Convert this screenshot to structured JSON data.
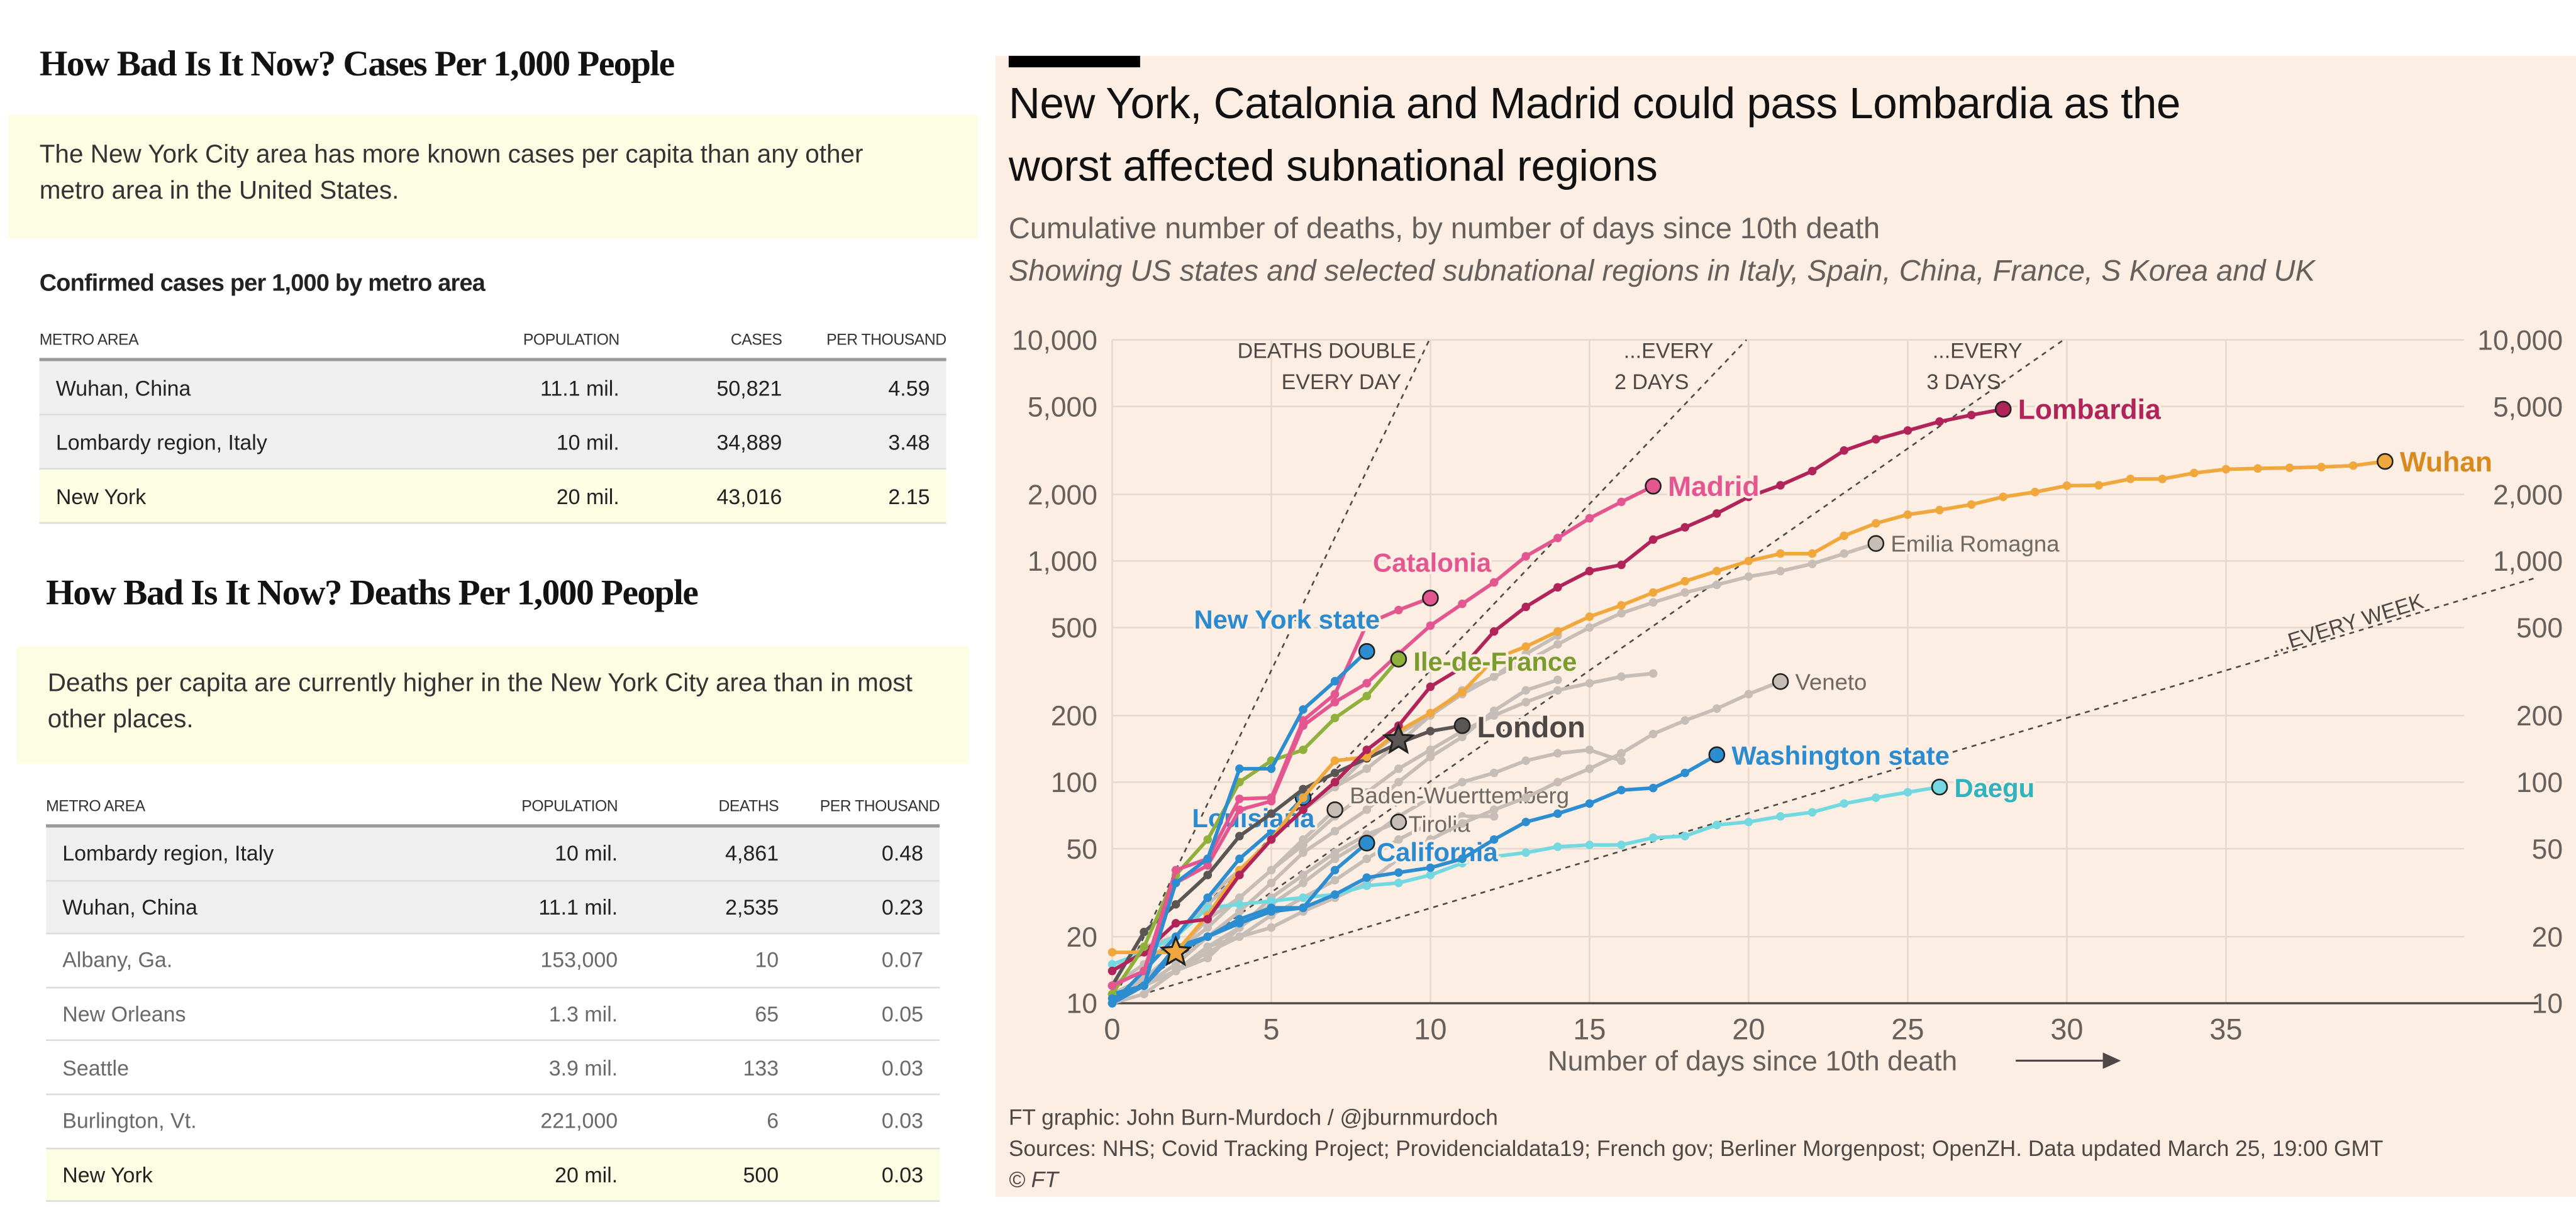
{
  "cases_section": {
    "title": "How Bad Is It Now? Cases Per 1,000 People",
    "note": "The New York City area has more known cases per capita than any other metro area in the United States.",
    "subhead": "Confirmed cases per 1,000 by metro area",
    "columns": [
      "METRO AREA",
      "POPULATION",
      "CASES",
      "PER THOUSAND"
    ],
    "rows": [
      {
        "area": "Wuhan, China",
        "population": "11.1 mil.",
        "count": "50,821",
        "per_thousand": "4.59",
        "highlight": "gray"
      },
      {
        "area": "Lombardy region, Italy",
        "population": "10 mil.",
        "count": "34,889",
        "per_thousand": "3.48",
        "highlight": "gray"
      },
      {
        "area": "New York",
        "population": "20 mil.",
        "count": "43,016",
        "per_thousand": "2.15",
        "highlight": "yellow"
      }
    ]
  },
  "deaths_section": {
    "title": "How Bad Is It Now? Deaths Per 1,000 People",
    "note": "Deaths per capita are currently higher in the New York City area than in most other places.",
    "columns": [
      "METRO AREA",
      "POPULATION",
      "DEATHS",
      "PER THOUSAND"
    ],
    "rows": [
      {
        "area": "Lombardy region, Italy",
        "population": "10 mil.",
        "count": "4,861",
        "per_thousand": "0.48",
        "highlight": "gray"
      },
      {
        "area": "Wuhan, China",
        "population": "11.1 mil.",
        "count": "2,535",
        "per_thousand": "0.23",
        "highlight": "gray"
      },
      {
        "area": "Albany, Ga.",
        "population": "153,000",
        "count": "10",
        "per_thousand": "0.07",
        "highlight": "none"
      },
      {
        "area": "New Orleans",
        "population": "1.3 mil.",
        "count": "65",
        "per_thousand": "0.05",
        "highlight": "none"
      },
      {
        "area": "Seattle",
        "population": "3.9 mil.",
        "count": "133",
        "per_thousand": "0.03",
        "highlight": "none"
      },
      {
        "area": "Burlington, Vt.",
        "population": "221,000",
        "count": "6",
        "per_thousand": "0.03",
        "highlight": "none"
      },
      {
        "area": "New York",
        "population": "20 mil.",
        "count": "500",
        "per_thousand": "0.03",
        "highlight": "yellow"
      }
    ]
  },
  "ft_chart": {
    "title_line1": "New York, Catalonia and Madrid could pass Lombardia as the",
    "title_line2": "worst affected subnational regions",
    "subtitle": "Cumulative number of deaths, by number of days since 10th death",
    "subtitle_italic": "Showing US states and selected subnational regions in Italy, Spain, China, France, S Korea and UK",
    "credit": "FT graphic: John Burn-Murdoch / @jburnmurdoch",
    "sources": "Sources: NHS; Covid Tracking Project; Providencialdata19; French gov; Berliner Morgenpost; OpenZH. Data updated March 25, 19:00 GMT",
    "copyright": "© FT",
    "background": "#fdeee4"
  },
  "chart_data": {
    "type": "line",
    "xlabel": "Number of days since 10th death",
    "x_axis_arrow": true,
    "xlim": [
      0,
      44
    ],
    "ylim": [
      10,
      10000
    ],
    "y_scale": "log",
    "x_ticks": [
      0,
      5,
      10,
      15,
      20,
      25,
      30,
      35
    ],
    "y_ticks": [
      10,
      20,
      50,
      100,
      200,
      500,
      1000,
      2000,
      5000,
      10000
    ],
    "y_tick_labels": [
      "10",
      "20",
      "50",
      "100",
      "200",
      "500",
      "1,000",
      "2,000",
      "5,000",
      "10,000"
    ],
    "y_axis_sides": "both",
    "grid": true,
    "reference_lines": [
      {
        "doubling_days": 1,
        "label_lines": [
          "DEATHS DOUBLE",
          "EVERY DAY"
        ]
      },
      {
        "doubling_days": 2,
        "label_lines": [
          "...EVERY",
          "2 DAYS"
        ]
      },
      {
        "doubling_days": 3,
        "label_lines": [
          "...EVERY",
          "3 DAYS"
        ]
      },
      {
        "doubling_days": 7,
        "label_lines": [
          "...EVERY WEEK"
        ]
      }
    ],
    "series": [
      {
        "name": "",
        "color": "#c6bdb6",
        "values": [
          12,
          15,
          20,
          28,
          38,
          55,
          75,
          95,
          130,
          165,
          200,
          260,
          300,
          380,
          460
        ]
      },
      {
        "name": "",
        "color": "#c6bdb6",
        "values": [
          11,
          13,
          17,
          22,
          30,
          40,
          52,
          70,
          90,
          115,
          140,
          170,
          200,
          230,
          260,
          280,
          300,
          310
        ]
      },
      {
        "name": "",
        "color": "#c6bdb6",
        "values": [
          10,
          12,
          15,
          20,
          26,
          35,
          48,
          60,
          75,
          100,
          130,
          160,
          210,
          260,
          290
        ]
      },
      {
        "name": "",
        "color": "#c6bdb6",
        "values": [
          10,
          11,
          14,
          18,
          22,
          28,
          35,
          45,
          55,
          70,
          85,
          100,
          110,
          125,
          135,
          140,
          125
        ]
      },
      {
        "name": "",
        "color": "#c6bdb6",
        "values": [
          10,
          12,
          14,
          17,
          20,
          25,
          30,
          36,
          45,
          55,
          65,
          70,
          70
        ]
      },
      {
        "name": "Baden-Wuerttemberg",
        "color": "#c6bdb6",
        "label_color": "#6f6964",
        "values": [
          10,
          13,
          17,
          24,
          30,
          40,
          55,
          75
        ]
      },
      {
        "name": "Tirolia",
        "color": "#c6bdb6",
        "label_color": "#6f6964",
        "values": [
          10,
          12,
          14,
          16,
          22,
          30,
          38,
          48,
          58,
          66
        ]
      },
      {
        "name": "Veneto",
        "color": "#c6bdb6",
        "label_color": "#6f6964",
        "values": [
          10,
          12,
          14,
          18,
          20,
          22,
          26,
          30,
          35,
          45,
          55,
          65,
          75,
          85,
          100,
          115,
          135,
          165,
          190,
          215,
          250,
          285
        ]
      },
      {
        "name": "Emilia Romagna",
        "color": "#c6bdb6",
        "label_color": "#6f6964",
        "values": [
          14,
          18,
          20,
          30,
          40,
          55,
          75,
          95,
          115,
          150,
          200,
          250,
          300,
          350,
          420,
          500,
          580,
          650,
          720,
          780,
          850,
          900,
          970,
          1080,
          1200
        ]
      },
      {
        "name": "Daegu",
        "color": "#74d8e0",
        "label_color": "#2fb3bd",
        "values": [
          15,
          17,
          20,
          27,
          28,
          29,
          30,
          31,
          34,
          35,
          38,
          43,
          46,
          48,
          51,
          52,
          52,
          56,
          57,
          64,
          66,
          70,
          73,
          80,
          85,
          90,
          95
        ]
      },
      {
        "name": "California",
        "color": "#2c8ed1",
        "label_color": "#2a8bd0",
        "values": [
          11,
          12,
          17,
          20,
          24,
          27,
          27,
          40,
          53
        ]
      },
      {
        "name": "Louisiana",
        "color": "#2c8ed1",
        "label_color": "#2a8bd0",
        "values": [
          10,
          14,
          20,
          30,
          45,
          60,
          85
        ]
      },
      {
        "name": "Washington state",
        "color": "#2c8ed1",
        "label_color": "#2a8bd0",
        "values": [
          10,
          12,
          18,
          20,
          23,
          26,
          27,
          31,
          37,
          39,
          41,
          45,
          55,
          66,
          72,
          80,
          92,
          94,
          110,
          133
        ]
      },
      {
        "name": "London",
        "color": "#5b5654",
        "label_color": "#4d4845",
        "values": [
          12,
          21,
          28,
          38,
          57,
          72,
          93,
          110,
          128,
          150,
          170,
          180
        ]
      },
      {
        "name": "Wuhan",
        "color": "#f0a83c",
        "label_color": "#d98a1e",
        "values": [
          17,
          17,
          17,
          25,
          40,
          55,
          85,
          125,
          130,
          170,
          205,
          255,
          360,
          410,
          480,
          560,
          630,
          720,
          810,
          900,
          1000,
          1080,
          1080,
          1300,
          1480,
          1620,
          1700,
          1800,
          1950,
          2050,
          2190,
          2200,
          2350,
          2350,
          2500,
          2600,
          2620,
          2640,
          2660,
          2700,
          2820
        ]
      },
      {
        "name": "Lombardia",
        "color": "#b0245a",
        "label_color": "#b0245a",
        "values": [
          14,
          17,
          23,
          24,
          38,
          55,
          75,
          100,
          140,
          180,
          270,
          330,
          480,
          620,
          760,
          900,
          960,
          1250,
          1420,
          1640,
          1950,
          2200,
          2550,
          3160,
          3550,
          3890,
          4270,
          4570,
          4861
        ]
      },
      {
        "name": "Madrid",
        "color": "#e4568f",
        "label_color": "#e4568f",
        "values": [
          12,
          14,
          35,
          42,
          75,
          82,
          180,
          230,
          280,
          380,
          510,
          640,
          800,
          1050,
          1270,
          1560,
          1850,
          2180
        ]
      },
      {
        "name": "Ile-de-France",
        "color": "#8fb13c",
        "label_color": "#7a9c2e",
        "values": [
          11,
          18,
          38,
          55,
          100,
          125,
          140,
          195,
          245,
          360
        ]
      },
      {
        "name": "Catalonia",
        "color": "#e4568f",
        "label_color": "#e4568f",
        "values": [
          12,
          14,
          40,
          45,
          84,
          85,
          190,
          250,
          520,
          600,
          680
        ]
      },
      {
        "name": "New York state",
        "color": "#2c8ed1",
        "label_color": "#2a8bd0",
        "values": [
          10.5,
          12,
          35,
          45,
          115,
          115,
          213,
          286,
          390
        ]
      }
    ],
    "markers": [
      {
        "x": 2,
        "y": 17,
        "shape": "star",
        "color": "#f0a83c"
      },
      {
        "x": 9,
        "y": 155,
        "shape": "star",
        "color": "#5b5654"
      }
    ]
  }
}
